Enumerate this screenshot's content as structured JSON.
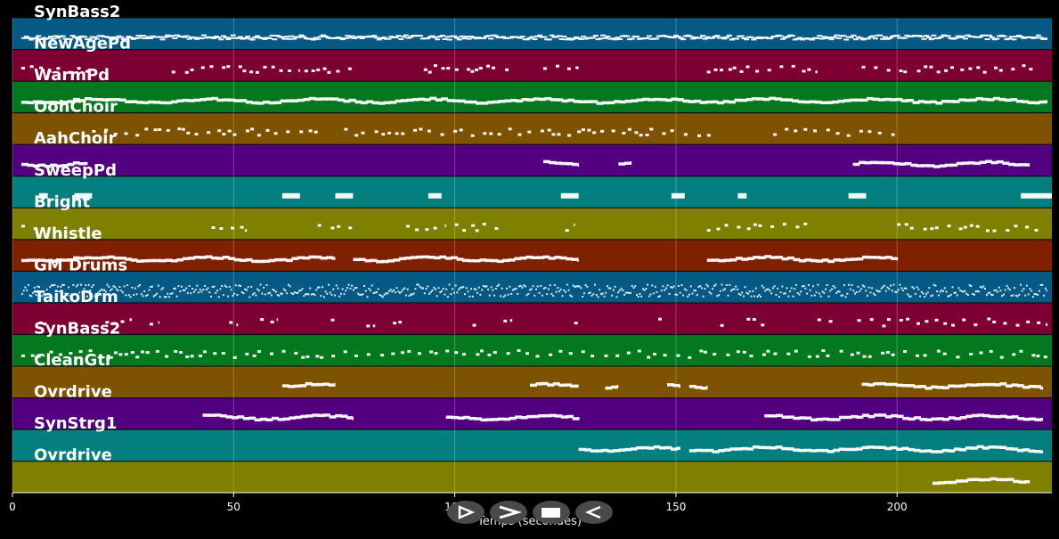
{
  "tracks": [
    {
      "name": "SynBass2",
      "color": "#045a85"
    },
    {
      "name": "NewAgePd",
      "color": "#7d0033"
    },
    {
      "name": "WarmPd",
      "color": "#04781f"
    },
    {
      "name": "OohChoir",
      "color": "#7d5300"
    },
    {
      "name": "AahChoir",
      "color": "#520080"
    },
    {
      "name": "SweepPd",
      "color": "#047f7f"
    },
    {
      "name": "Bright",
      "color": "#7f7f00"
    },
    {
      "name": "Whistle",
      "color": "#7f2000"
    },
    {
      "name": "GM Drums",
      "color": "#045a85"
    },
    {
      "name": "TaikoDrm",
      "color": "#7d0033"
    },
    {
      "name": "SynBass2",
      "color": "#04781f"
    },
    {
      "name": "CleanGtr",
      "color": "#7d5300"
    },
    {
      "name": "Ovrdrive",
      "color": "#520080"
    },
    {
      "name": "SynStrg1",
      "color": "#047f7f"
    },
    {
      "name": "Ovrdrive",
      "color": "#7f7f00"
    }
  ],
  "axis": {
    "label": "Temps (secondes)",
    "range": [
      0,
      235
    ],
    "ticks": [
      0,
      50,
      100,
      150,
      200
    ]
  },
  "controls": [
    {
      "name": "play-button",
      "icon": "play-icon"
    },
    {
      "name": "forward-button",
      "icon": "chevron-right-icon"
    },
    {
      "name": "stop-button",
      "icon": "stop-icon"
    },
    {
      "name": "back-button",
      "icon": "back-icon"
    }
  ]
}
